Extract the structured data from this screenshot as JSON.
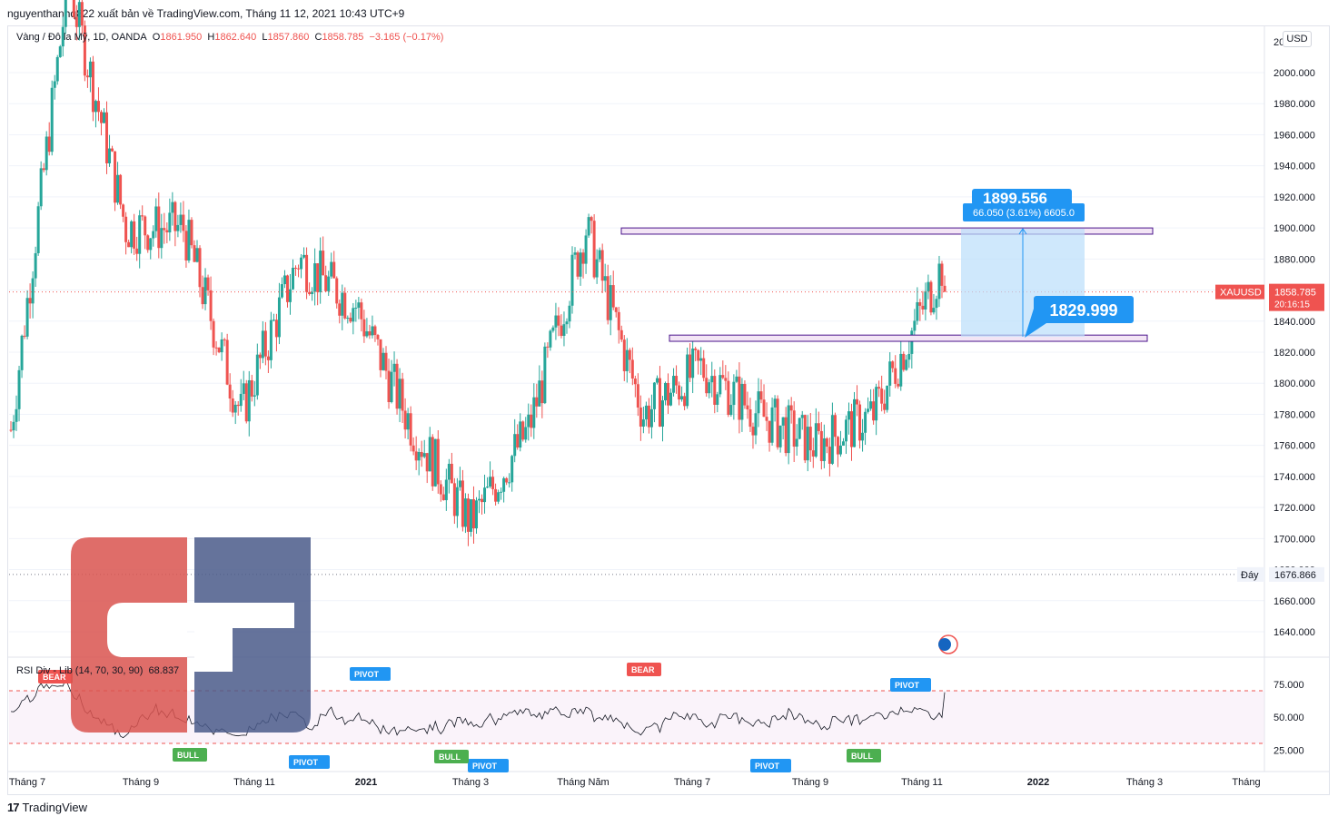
{
  "header": {
    "published_text": "nguyenthanhq822 xuất bản về TradingView.com, Tháng 11 12, 2021 10:43 UTC+9"
  },
  "symbol": {
    "name": "Vàng / Đô la Mỹ, 1D, OANDA",
    "open_label": "O",
    "open": "1861.950",
    "high_label": "H",
    "high": "1862.640",
    "low_label": "L",
    "low": "1857.860",
    "close_label": "C",
    "close": "1858.785",
    "change": "−3.165 (−0.17%)"
  },
  "currency_button": "USD",
  "price_axis": {
    "labels": [
      "2000.000",
      "1980.000",
      "1960.000",
      "1940.000",
      "1920.000",
      "1900.000",
      "1880.000",
      "1860.000",
      "1840.000",
      "1820.000",
      "1800.000",
      "1780.000",
      "1760.000",
      "1740.000",
      "1720.000",
      "1700.000",
      "1680.000",
      "1660.000",
      "1640.000"
    ],
    "top_cut_label": "20",
    "current_symbol": "XAUUSD",
    "current_price": "1858.785",
    "countdown": "20:16:15",
    "low_label": "Đáy",
    "low_price": "1676.866"
  },
  "rsi": {
    "label": "RSI Div - Lib (14, 70, 30, 90)",
    "value": "68.837",
    "axis_labels": [
      "75.000",
      "50.000",
      "25.000"
    ],
    "overbought": 70,
    "oversold": 30
  },
  "time_axis": {
    "labels": [
      "Tháng 7",
      "Tháng 9",
      "Tháng 11",
      "2021",
      "Tháng 3",
      "Tháng Năm",
      "Tháng 7",
      "Tháng 9",
      "Tháng 11",
      "2022",
      "Tháng 3",
      "Tháng"
    ]
  },
  "annotations": {
    "measure_text": "66.050 (3.61%) 6605.0",
    "upper_price_partial": "1899.556",
    "lower_price": "1829.999",
    "resistance_zone": [
      1896,
      1900
    ],
    "support_zone": [
      1827,
      1831
    ]
  },
  "signals": {
    "pivot": "PIVOT",
    "bull": "BULL",
    "bear": "BEAR"
  },
  "colors": {
    "up": "#26a69a",
    "down": "#ef5350",
    "measure": "#2196f3",
    "measure_fill": "#bbdefb",
    "zone_fill": "#f3e5f5",
    "zone_stroke": "#4a148c",
    "logo_red": "#d9534f",
    "logo_blue": "#4a5a8a"
  },
  "chart_data": {
    "type": "candlestick",
    "title": "Vàng / Đô la Mỹ, 1D, OANDA",
    "ylim": [
      1625,
      2025
    ],
    "last_close": 1858.785,
    "low_marker": 1676.866,
    "monthly_path": [
      {
        "month": "Tháng 7 2020",
        "price": 1770
      },
      {
        "month": "Tháng 8 2020",
        "price": 2060
      },
      {
        "month": "Tháng 9 2020",
        "price": 1900
      },
      {
        "month": "Tháng 10 2020",
        "price": 1900
      },
      {
        "month": "Tháng 11 2020",
        "price": 1780
      },
      {
        "month": "Tháng 12 2020",
        "price": 1880
      },
      {
        "month": "Tháng 1 2021",
        "price": 1850
      },
      {
        "month": "Tháng 2 2021",
        "price": 1770
      },
      {
        "month": "Tháng 3 2021",
        "price": 1710
      },
      {
        "month": "Tháng 4 2021",
        "price": 1770
      },
      {
        "month": "Tháng 5 2021",
        "price": 1900
      },
      {
        "month": "Tháng 6 2021",
        "price": 1780
      },
      {
        "month": "Tháng 7 2021",
        "price": 1810
      },
      {
        "month": "Tháng 8 2021",
        "price": 1780
      },
      {
        "month": "Tháng 9 2021",
        "price": 1760
      },
      {
        "month": "Tháng 10 2021",
        "price": 1780
      },
      {
        "month": "Tháng 11 2021",
        "price": 1860
      }
    ]
  },
  "footer": {
    "brand": "TradingView"
  }
}
